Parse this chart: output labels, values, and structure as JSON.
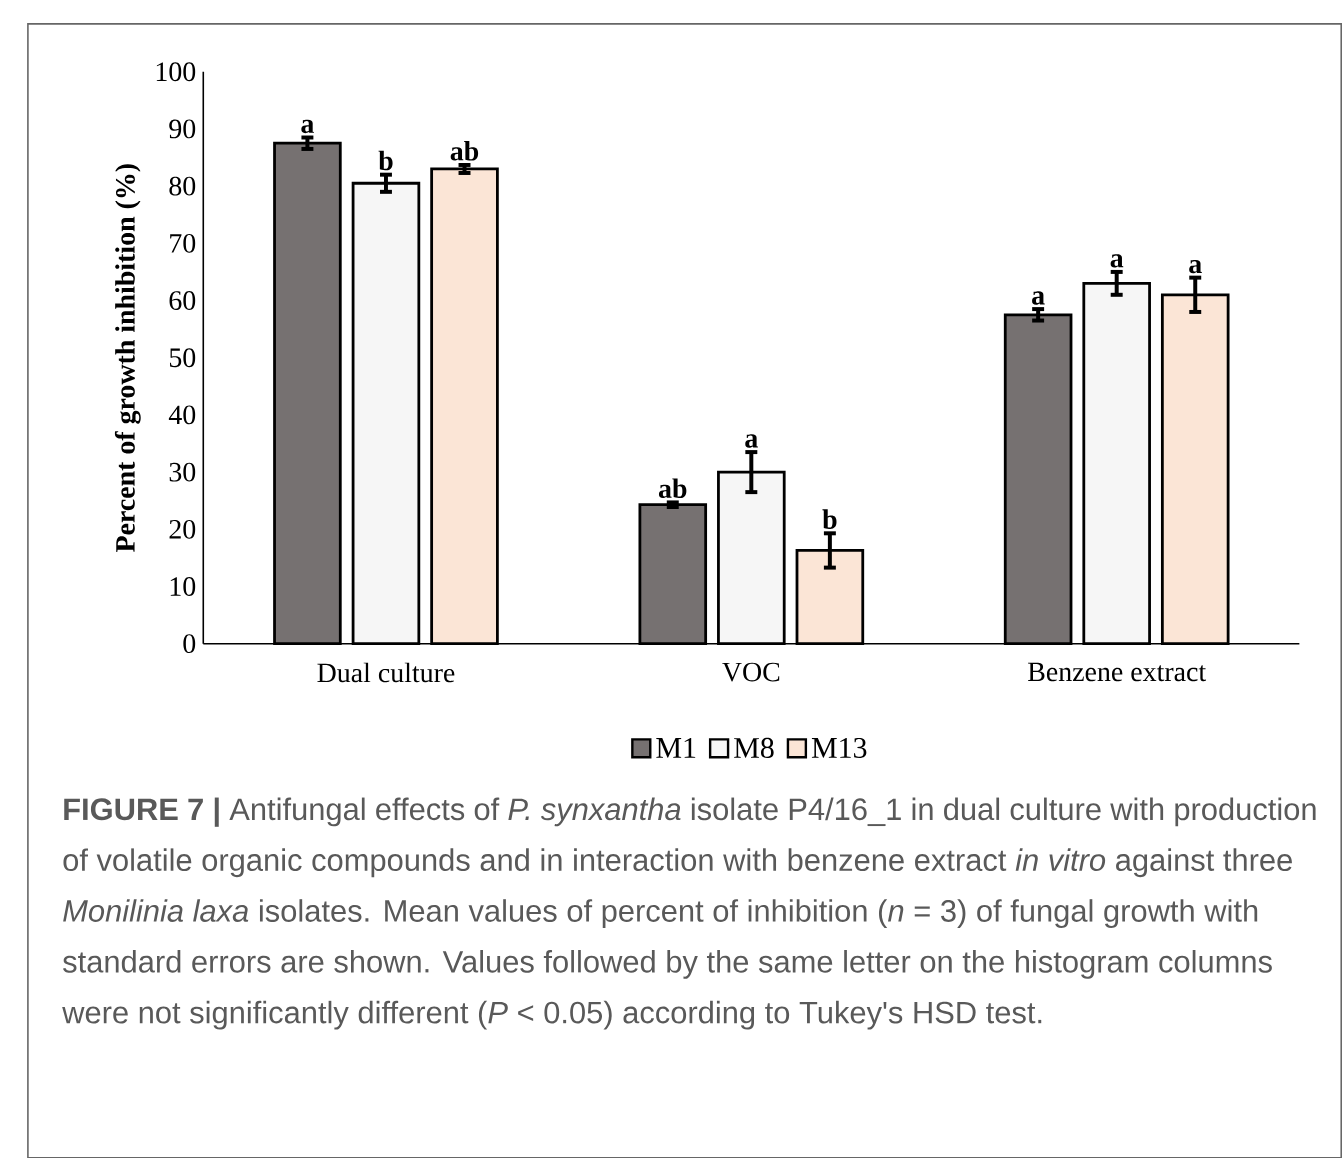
{
  "chart_data": {
    "type": "bar",
    "ylabel": "Percent of growth inhibition (%)",
    "categories": [
      "Dual culture",
      "VOC",
      "Benzene extract"
    ],
    "series": [
      {
        "name": "M1",
        "color": "#767171",
        "values": [
          87.5,
          24.3,
          57.5
        ],
        "errors": [
          1.0,
          0.4,
          1.0
        ]
      },
      {
        "name": "M8",
        "color": "#f6f6f6",
        "values": [
          80.5,
          30.0,
          63.0
        ],
        "errors": [
          1.5,
          3.5,
          2.0
        ]
      },
      {
        "name": "M13",
        "color": "#fbe5d6",
        "values": [
          83.0,
          16.3,
          61.0
        ],
        "errors": [
          0.7,
          3.0,
          3.0
        ]
      }
    ],
    "ylim": [
      0,
      100
    ],
    "yticks": [
      0,
      10,
      20,
      30,
      40,
      50,
      60,
      70,
      80,
      90,
      100
    ],
    "grid": false,
    "legend": "bottom",
    "annotations": [
      "a",
      "b",
      "ab",
      "ab",
      "a",
      "b",
      "a",
      "a",
      "a",
      "**FIGURE 7 |** Antifungal effects of *P. synxantha* isolate P4/16_1 in dual culture with production of volatile organic compounds and in interaction with benzene extract *in vitro* against three *Monilinia laxa* isolates. Mean values of percent of inhibition (*n* = 3) of fungal growth with standard errors are shown. Values followed by the same letter on the histogram columns were not significantly different (*P* < 0.05) according to Tukey's HSD test."
    ]
  }
}
